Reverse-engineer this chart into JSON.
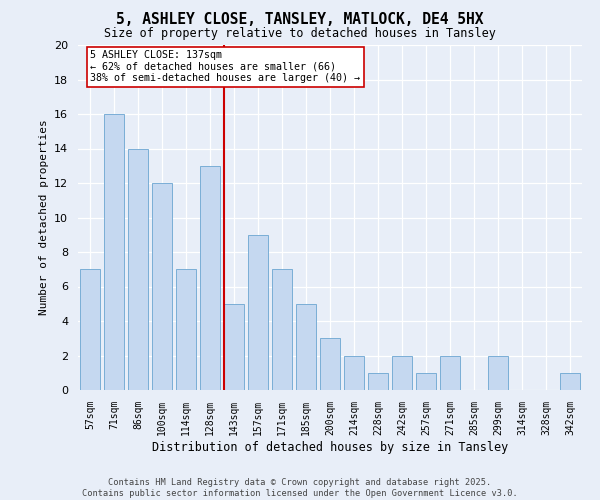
{
  "title": "5, ASHLEY CLOSE, TANSLEY, MATLOCK, DE4 5HX",
  "subtitle": "Size of property relative to detached houses in Tansley",
  "xlabel": "Distribution of detached houses by size in Tansley",
  "ylabel": "Number of detached properties",
  "categories": [
    "57sqm",
    "71sqm",
    "86sqm",
    "100sqm",
    "114sqm",
    "128sqm",
    "143sqm",
    "157sqm",
    "171sqm",
    "185sqm",
    "200sqm",
    "214sqm",
    "228sqm",
    "242sqm",
    "257sqm",
    "271sqm",
    "285sqm",
    "299sqm",
    "314sqm",
    "328sqm",
    "342sqm"
  ],
  "values": [
    7,
    16,
    14,
    12,
    7,
    13,
    5,
    9,
    7,
    5,
    3,
    2,
    1,
    2,
    1,
    2,
    0,
    2,
    0,
    0,
    1
  ],
  "bar_color": "#c5d8f0",
  "bar_edge_color": "#7aaed6",
  "vline_x_index": 6,
  "vline_color": "#cc0000",
  "ylim": [
    0,
    20
  ],
  "yticks": [
    0,
    2,
    4,
    6,
    8,
    10,
    12,
    14,
    16,
    18,
    20
  ],
  "annotation_text": "5 ASHLEY CLOSE: 137sqm\n← 62% of detached houses are smaller (66)\n38% of semi-detached houses are larger (40) →",
  "annotation_box_color": "#ffffff",
  "annotation_box_edge_color": "#cc0000",
  "footer_line1": "Contains HM Land Registry data © Crown copyright and database right 2025.",
  "footer_line2": "Contains public sector information licensed under the Open Government Licence v3.0.",
  "background_color": "#e8eef8",
  "plot_background_color": "#e8eef8",
  "grid_color": "#ffffff",
  "bar_width": 0.85
}
